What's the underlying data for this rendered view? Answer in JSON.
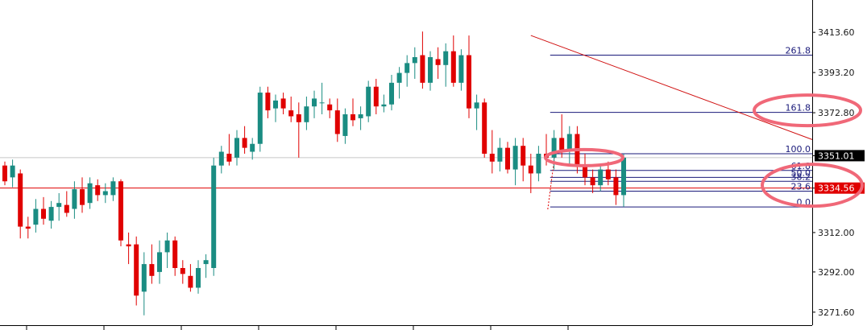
{
  "chart_data": {
    "type": "candlestick",
    "y_ticks": [
      3413.6,
      3393.2,
      3372.8,
      3351.01,
      3334.56,
      3312.0,
      3292.0,
      3271.6
    ],
    "y_tick_labels": [
      "3413.60",
      "3393.20",
      "3372.80",
      "3351.01",
      "3334.56",
      "3312.00",
      "3292.00",
      "3271.60"
    ],
    "ylim": [
      3265.0,
      3430.0
    ],
    "grid": false,
    "colors": {
      "up": "#1a8c82",
      "down": "#e00000",
      "trendline": "#d01010",
      "fib": "#1a1a7a",
      "highlight": "#f06878"
    },
    "price_labels": [
      {
        "value": 3351.01,
        "text": "3351.01",
        "bg": "#000000"
      },
      {
        "value": 3334.56,
        "text": "3334.56",
        "bg": "#e00000"
      }
    ],
    "horizontal_lines": [
      {
        "value": 3350.0,
        "color": "#c8c8c8"
      },
      {
        "value": 3334.56,
        "color": "#e00000"
      }
    ],
    "trendline": {
      "from": {
        "bar": 68,
        "value": 3412.0
      },
      "to": {
        "bar": 150,
        "value": 3293.0
      }
    },
    "fibonacci": {
      "from_bar": 70.5,
      "levels": [
        {
          "label": "261.8",
          "value": 3402.0
        },
        {
          "label": "161.8",
          "value": 3373.0
        },
        {
          "label": "100.0",
          "value": 3352.0
        },
        {
          "label": "61.8",
          "value": 3343.5
        },
        {
          "label": "50.0",
          "value": 3340.0
        },
        {
          "label": "38.2",
          "value": 3338.0
        },
        {
          "label": "23.6",
          "value": 3333.0
        },
        {
          "label": "0.0",
          "value": 3325.0
        }
      ]
    },
    "candles": [
      {
        "o": 3346,
        "h": 3348,
        "l": 3336,
        "c": 3338
      },
      {
        "o": 3340,
        "h": 3349,
        "l": 3335,
        "c": 3346
      },
      {
        "o": 3342,
        "h": 3344,
        "l": 3309,
        "c": 3315
      },
      {
        "o": 3315,
        "h": 3320,
        "l": 3309,
        "c": 3314
      },
      {
        "o": 3316,
        "h": 3329,
        "l": 3312,
        "c": 3324
      },
      {
        "o": 3324,
        "h": 3330,
        "l": 3316,
        "c": 3319
      },
      {
        "o": 3318,
        "h": 3328,
        "l": 3314,
        "c": 3325
      },
      {
        "o": 3325,
        "h": 3332,
        "l": 3318,
        "c": 3327
      },
      {
        "o": 3326,
        "h": 3333,
        "l": 3320,
        "c": 3322
      },
      {
        "o": 3324,
        "h": 3338,
        "l": 3319,
        "c": 3334
      },
      {
        "o": 3334,
        "h": 3340,
        "l": 3322,
        "c": 3326
      },
      {
        "o": 3327,
        "h": 3340,
        "l": 3324,
        "c": 3337
      },
      {
        "o": 3336,
        "h": 3339,
        "l": 3328,
        "c": 3331
      },
      {
        "o": 3331,
        "h": 3337,
        "l": 3327,
        "c": 3333
      },
      {
        "o": 3331,
        "h": 3340,
        "l": 3328,
        "c": 3338
      },
      {
        "o": 3338,
        "h": 3339,
        "l": 3305,
        "c": 3308
      },
      {
        "o": 3306,
        "h": 3312,
        "l": 3296,
        "c": 3305
      },
      {
        "o": 3306,
        "h": 3310,
        "l": 3275,
        "c": 3280
      },
      {
        "o": 3282,
        "h": 3302,
        "l": 3270,
        "c": 3296
      },
      {
        "o": 3296,
        "h": 3306,
        "l": 3286,
        "c": 3290
      },
      {
        "o": 3292,
        "h": 3308,
        "l": 3286,
        "c": 3302
      },
      {
        "o": 3302,
        "h": 3312,
        "l": 3294,
        "c": 3308
      },
      {
        "o": 3308,
        "h": 3310,
        "l": 3290,
        "c": 3294
      },
      {
        "o": 3294,
        "h": 3298,
        "l": 3286,
        "c": 3291
      },
      {
        "o": 3290,
        "h": 3296,
        "l": 3282,
        "c": 3284
      },
      {
        "o": 3284,
        "h": 3298,
        "l": 3281,
        "c": 3294
      },
      {
        "o": 3296,
        "h": 3301,
        "l": 3289,
        "c": 3298
      },
      {
        "o": 3294,
        "h": 3350,
        "l": 3290,
        "c": 3346
      },
      {
        "o": 3346,
        "h": 3356,
        "l": 3342,
        "c": 3353
      },
      {
        "o": 3352,
        "h": 3362,
        "l": 3346,
        "c": 3348
      },
      {
        "o": 3350,
        "h": 3364,
        "l": 3346,
        "c": 3360
      },
      {
        "o": 3360,
        "h": 3366,
        "l": 3352,
        "c": 3355
      },
      {
        "o": 3353,
        "h": 3360,
        "l": 3349,
        "c": 3357
      },
      {
        "o": 3357,
        "h": 3386,
        "l": 3353,
        "c": 3383
      },
      {
        "o": 3383,
        "h": 3386,
        "l": 3370,
        "c": 3374
      },
      {
        "o": 3375,
        "h": 3382,
        "l": 3368,
        "c": 3379
      },
      {
        "o": 3380,
        "h": 3383,
        "l": 3372,
        "c": 3375
      },
      {
        "o": 3374,
        "h": 3381,
        "l": 3368,
        "c": 3371
      },
      {
        "o": 3372,
        "h": 3378,
        "l": 3350,
        "c": 3368
      },
      {
        "o": 3368,
        "h": 3381,
        "l": 3364,
        "c": 3376
      },
      {
        "o": 3376,
        "h": 3384,
        "l": 3370,
        "c": 3380
      },
      {
        "o": 3378,
        "h": 3388,
        "l": 3372,
        "c": 3378
      },
      {
        "o": 3377,
        "h": 3380,
        "l": 3370,
        "c": 3374
      },
      {
        "o": 3374,
        "h": 3380,
        "l": 3358,
        "c": 3362
      },
      {
        "o": 3361,
        "h": 3375,
        "l": 3357,
        "c": 3372
      },
      {
        "o": 3372,
        "h": 3380,
        "l": 3366,
        "c": 3369
      },
      {
        "o": 3370,
        "h": 3376,
        "l": 3364,
        "c": 3372
      },
      {
        "o": 3371,
        "h": 3389,
        "l": 3368,
        "c": 3386
      },
      {
        "o": 3386,
        "h": 3390,
        "l": 3372,
        "c": 3376
      },
      {
        "o": 3376,
        "h": 3382,
        "l": 3373,
        "c": 3377
      },
      {
        "o": 3377,
        "h": 3392,
        "l": 3374,
        "c": 3388
      },
      {
        "o": 3388,
        "h": 3396,
        "l": 3380,
        "c": 3393
      },
      {
        "o": 3393,
        "h": 3402,
        "l": 3386,
        "c": 3398
      },
      {
        "o": 3398,
        "h": 3406,
        "l": 3390,
        "c": 3401
      },
      {
        "o": 3402,
        "h": 3414,
        "l": 3385,
        "c": 3388
      },
      {
        "o": 3388,
        "h": 3404,
        "l": 3384,
        "c": 3401
      },
      {
        "o": 3400,
        "h": 3406,
        "l": 3390,
        "c": 3397
      },
      {
        "o": 3397,
        "h": 3408,
        "l": 3386,
        "c": 3404
      },
      {
        "o": 3404,
        "h": 3412,
        "l": 3386,
        "c": 3388
      },
      {
        "o": 3388,
        "h": 3405,
        "l": 3384,
        "c": 3402
      },
      {
        "o": 3402,
        "h": 3412,
        "l": 3370,
        "c": 3375
      },
      {
        "o": 3375,
        "h": 3382,
        "l": 3364,
        "c": 3378
      },
      {
        "o": 3378,
        "h": 3380,
        "l": 3350,
        "c": 3352
      },
      {
        "o": 3352,
        "h": 3364,
        "l": 3342,
        "c": 3348
      },
      {
        "o": 3348,
        "h": 3360,
        "l": 3343,
        "c": 3355
      },
      {
        "o": 3355,
        "h": 3358,
        "l": 3342,
        "c": 3344
      },
      {
        "o": 3344,
        "h": 3360,
        "l": 3336,
        "c": 3356
      },
      {
        "o": 3356,
        "h": 3360,
        "l": 3338,
        "c": 3346
      },
      {
        "o": 3346,
        "h": 3352,
        "l": 3332,
        "c": 3342
      },
      {
        "o": 3342,
        "h": 3356,
        "l": 3338,
        "c": 3352
      },
      {
        "o": 3352,
        "h": 3362,
        "l": 3346,
        "c": 3350
      },
      {
        "o": 3350,
        "h": 3364,
        "l": 3344,
        "c": 3360
      },
      {
        "o": 3360,
        "h": 3372,
        "l": 3350,
        "c": 3354
      },
      {
        "o": 3354,
        "h": 3366,
        "l": 3346,
        "c": 3362
      },
      {
        "o": 3362,
        "h": 3366,
        "l": 3342,
        "c": 3346
      },
      {
        "o": 3346,
        "h": 3352,
        "l": 3336,
        "c": 3340
      },
      {
        "o": 3340,
        "h": 3344,
        "l": 3332,
        "c": 3336
      },
      {
        "o": 3336,
        "h": 3346,
        "l": 3333,
        "c": 3344
      },
      {
        "o": 3344,
        "h": 3348,
        "l": 3336,
        "c": 3339
      },
      {
        "o": 3340,
        "h": 3344,
        "l": 3326,
        "c": 3331
      },
      {
        "o": 3331,
        "h": 3352,
        "l": 3325,
        "c": 3350
      }
    ]
  }
}
